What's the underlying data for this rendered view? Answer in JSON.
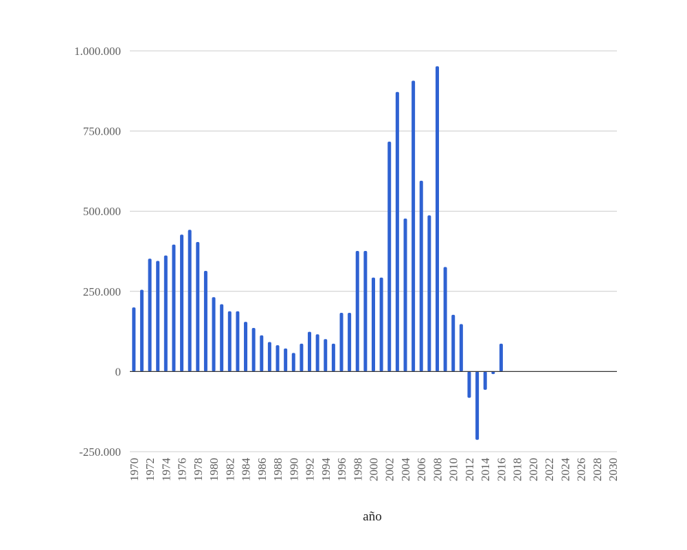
{
  "chart_data": {
    "type": "bar",
    "title": "",
    "xlabel": "año",
    "ylabel": "",
    "ylim": [
      -250000,
      1000000
    ],
    "yticks": [
      -250000,
      0,
      250000,
      500000,
      750000,
      1000000
    ],
    "ytick_labels": [
      "-250.000",
      "0",
      "250.000",
      "500.000",
      "750.000",
      "1.000.000"
    ],
    "xlim": [
      1970,
      2030
    ],
    "xtick_labels": [
      "1970",
      "1972",
      "1974",
      "1976",
      "1978",
      "1980",
      "1982",
      "1984",
      "1986",
      "1988",
      "1990",
      "1992",
      "1994",
      "1996",
      "1998",
      "2000",
      "2002",
      "2004",
      "2006",
      "2008",
      "2010",
      "2012",
      "2014",
      "2016",
      "2018",
      "2020",
      "2022",
      "2024",
      "2026",
      "2028",
      "2030"
    ],
    "grid": true,
    "legend": "none",
    "bar_color": "#2f62d2",
    "x": [
      1970,
      1971,
      1972,
      1973,
      1974,
      1975,
      1976,
      1977,
      1978,
      1979,
      1980,
      1981,
      1982,
      1983,
      1984,
      1985,
      1986,
      1987,
      1988,
      1989,
      1990,
      1991,
      1992,
      1993,
      1994,
      1995,
      1996,
      1997,
      1998,
      1999,
      2000,
      2001,
      2002,
      2003,
      2004,
      2005,
      2006,
      2007,
      2008,
      2009,
      2010,
      2011,
      2012,
      2013,
      2014,
      2015,
      2016
    ],
    "values": [
      200000,
      255000,
      352000,
      345000,
      362000,
      396000,
      427000,
      442000,
      404000,
      314000,
      232000,
      210000,
      188000,
      188000,
      155000,
      136000,
      113000,
      92000,
      82000,
      72000,
      58000,
      87000,
      124000,
      116000,
      101000,
      87000,
      183000,
      183000,
      376000,
      376000,
      293000,
      293000,
      717000,
      872000,
      477000,
      907000,
      595000,
      487000,
      952000,
      326000,
      177000,
      148000,
      -82000,
      -213000,
      -57000,
      -8000,
      87000
    ]
  }
}
